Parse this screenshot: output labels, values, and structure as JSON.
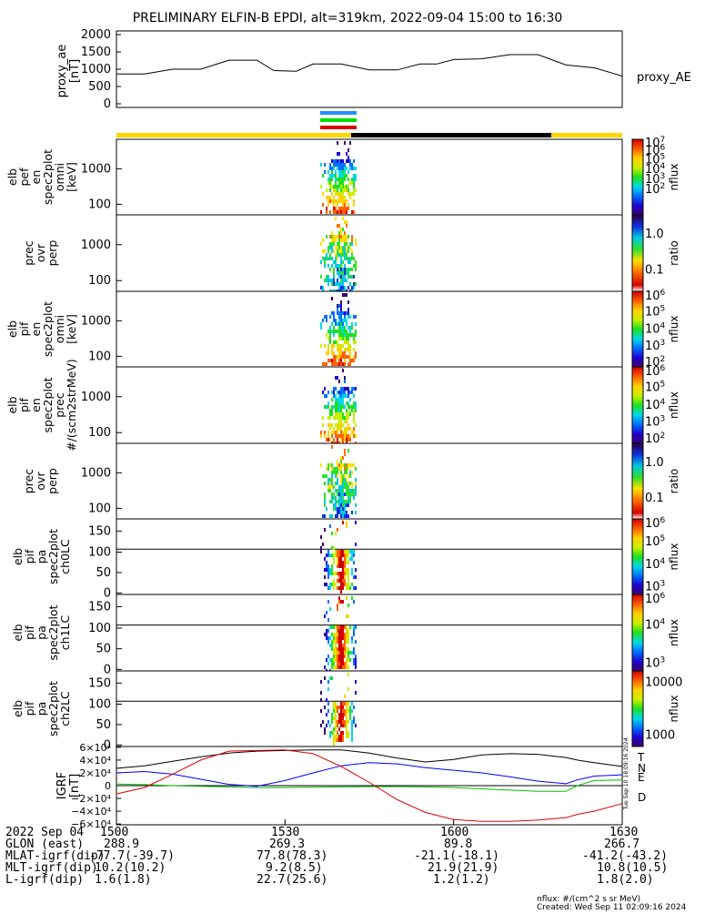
{
  "title": "PRELIMINARY ELFIN-B EPDI, alt=319km, 2022-09-04 15:00 to 16:30",
  "chart_data": [
    {
      "type": "line",
      "panel": "proxy_ae",
      "ylabel": [
        "proxy_ae",
        "[nT]"
      ],
      "right_label": "proxy_AE",
      "yticks": [
        "2000",
        "1500",
        "1000",
        "500",
        "0"
      ],
      "ylim": [
        0,
        2000
      ],
      "x_minutes": [
        0,
        5,
        10,
        15,
        20,
        25,
        28,
        32,
        35,
        40,
        45,
        50,
        54,
        57,
        60,
        65,
        70,
        75,
        80,
        85,
        88,
        90
      ],
      "values": [
        860,
        860,
        1000,
        1000,
        1260,
        1260,
        960,
        940,
        1150,
        1150,
        980,
        980,
        1150,
        1150,
        1280,
        1300,
        1420,
        1420,
        1120,
        1040,
        900,
        800
      ]
    },
    {
      "type": "heatmap",
      "panel": "elb_pef_en_spec2plot_omni",
      "ylabel": [
        "elb",
        "pef",
        "en",
        "spec2plot",
        "omni",
        "[keV]"
      ],
      "yticks": [
        "1000",
        "100"
      ],
      "colorbar": {
        "label": "nflux",
        "ticks": [
          "10^7",
          "10^6",
          "10^5",
          "10^4",
          "10^3",
          "10^2"
        ]
      }
    },
    {
      "type": "heatmap",
      "panel": "prec_ovr_perp_1",
      "ylabel": [
        "prec",
        "ovr",
        "perp"
      ],
      "yticks": [
        "1000",
        "100"
      ],
      "colorbar": {
        "label": "ratio",
        "ticks": [
          "1.0",
          "0.1"
        ]
      }
    },
    {
      "type": "heatmap",
      "panel": "elb_pif_en_spec2plot_omni",
      "ylabel": [
        "elb",
        "pif",
        "en",
        "spec2plot",
        "omni",
        "[keV]"
      ],
      "yticks": [
        "1000",
        "100"
      ],
      "colorbar": {
        "label": "nflux",
        "ticks": [
          "10^6",
          "10^5",
          "10^4",
          "10^3",
          "10^2"
        ]
      }
    },
    {
      "type": "heatmap",
      "panel": "elb_pif_en_spec2plot_prec",
      "ylabel": [
        "elb",
        "pif",
        "en",
        "spec2plot",
        "prec",
        "#/(scm2strMeV)"
      ],
      "yticks": [
        "1000",
        "100"
      ],
      "colorbar": {
        "label": "nflux",
        "ticks": [
          "10^6",
          "10^5",
          "10^4",
          "10^3",
          "10^2"
        ]
      }
    },
    {
      "type": "heatmap",
      "panel": "prec_ovr_perp_2",
      "ylabel": [
        "prec",
        "ovr",
        "perp"
      ],
      "yticks": [
        "1000",
        "100"
      ],
      "colorbar": {
        "label": "ratio",
        "ticks": [
          "1.0",
          "0.1"
        ]
      }
    },
    {
      "type": "heatmap",
      "panel": "elb_pif_pa_spec2plot_ch0LC",
      "ylabel": [
        "elb",
        "pif",
        "pa",
        "spec2plot",
        "ch0LC"
      ],
      "yticks": [
        "150",
        "100",
        "50",
        "0"
      ],
      "colorbar": {
        "label": "nflux",
        "ticks": [
          "10^6",
          "10^5",
          "10^4",
          "10^3"
        ]
      }
    },
    {
      "type": "heatmap",
      "panel": "elb_pif_pa_spec2plot_ch1LC",
      "ylabel": [
        "elb",
        "pif",
        "pa",
        "spec2plot",
        "ch1LC"
      ],
      "yticks": [
        "150",
        "100",
        "50",
        "0"
      ],
      "colorbar": {
        "label": "nflux",
        "ticks": [
          "10^6",
          "10^4",
          "10^3"
        ]
      }
    },
    {
      "type": "heatmap",
      "panel": "elb_pif_pa_spec2plot_ch2LC",
      "ylabel": [
        "elb",
        "pif",
        "pa",
        "spec2plot",
        "ch2LC"
      ],
      "yticks": [
        "150",
        "100",
        "50",
        "0"
      ],
      "colorbar": {
        "label": "nflux",
        "ticks": [
          "10000",
          "1000"
        ]
      }
    },
    {
      "type": "line",
      "panel": "igrf",
      "ylabel": [
        "IGRF",
        "[nT]"
      ],
      "yticks": [
        "6×10⁴",
        "4×10⁴",
        "2×10⁴",
        "0",
        "−2×10⁴",
        "−4×10⁴",
        "−6×10⁴"
      ],
      "ylim": [
        -60000,
        60000
      ],
      "x_minutes": [
        0,
        5,
        10,
        15,
        20,
        25,
        30,
        35,
        40,
        45,
        50,
        55,
        60,
        65,
        70,
        75,
        80,
        82,
        85,
        90
      ],
      "series": [
        {
          "name": "T",
          "color": "#000000",
          "values": [
            27000,
            31000,
            38000,
            45000,
            51000,
            54000,
            55000,
            56000,
            56000,
            51000,
            43000,
            37000,
            41000,
            48000,
            50000,
            49000,
            44000,
            40000,
            36000,
            30000
          ]
        },
        {
          "name": "N",
          "color": "#0000ff",
          "values": [
            20000,
            22000,
            18000,
            10000,
            2000,
            -1000,
            8000,
            20000,
            31000,
            36000,
            34000,
            28000,
            24000,
            20000,
            14000,
            7000,
            3000,
            9000,
            15000,
            17000
          ]
        },
        {
          "name": "E",
          "color": "#00c000",
          "values": [
            2500,
            1500,
            0,
            -1000,
            -2000,
            -3000,
            -3000,
            -2500,
            -2000,
            -1500,
            -1500,
            -2000,
            -3000,
            -5000,
            -7000,
            -9000,
            -9000,
            0,
            8000,
            9000
          ]
        },
        {
          "name": "D",
          "color": "#e00000",
          "values": [
            -13000,
            -3000,
            18000,
            40000,
            54000,
            55000,
            56000,
            50000,
            30000,
            5000,
            -22000,
            -42000,
            -53000,
            -56000,
            -56000,
            -54000,
            -50000,
            -45000,
            -40000,
            -28000
          ]
        }
      ]
    }
  ],
  "x_axis": {
    "ticks": [
      "1500",
      "1530",
      "1600",
      "1630"
    ],
    "date_label": "2022 Sep 04",
    "rows": [
      {
        "label": "GLON (east)",
        "values": [
          "288.9",
          "269.3",
          "89.8",
          "266.7"
        ]
      },
      {
        "label": "MLAT-igrf(dip)",
        "values": [
          "-77.7(-39.7)",
          "77.8(78.3)",
          "-21.1(-18.1)",
          "-41.2(-43.2)"
        ]
      },
      {
        "label": "MLT-igrf(dip)",
        "values": [
          "10.2(10.2)",
          "9.2(8.5)",
          "21.9(21.9)",
          "10.8(10.5)"
        ]
      },
      {
        "label": "L-igrf(dip)",
        "values": [
          "1.6(1.8)",
          "22.7(25.6)",
          "1.2(1.2)",
          "1.8(2.0)"
        ]
      }
    ]
  },
  "footer": {
    "units": "nflux: #/(cm^2 s sr MeV)",
    "created": "Created: Wed Sep 11 02:09:16 2024"
  },
  "side_timestamp": "Tue Sep 10 18:09:16 2024",
  "colors": {
    "science_zone": "#ffd700",
    "shadow_bar": "#000000",
    "track_blue": "#1e90ff",
    "track_green": "#00dd00",
    "track_red": "#dd0000"
  }
}
